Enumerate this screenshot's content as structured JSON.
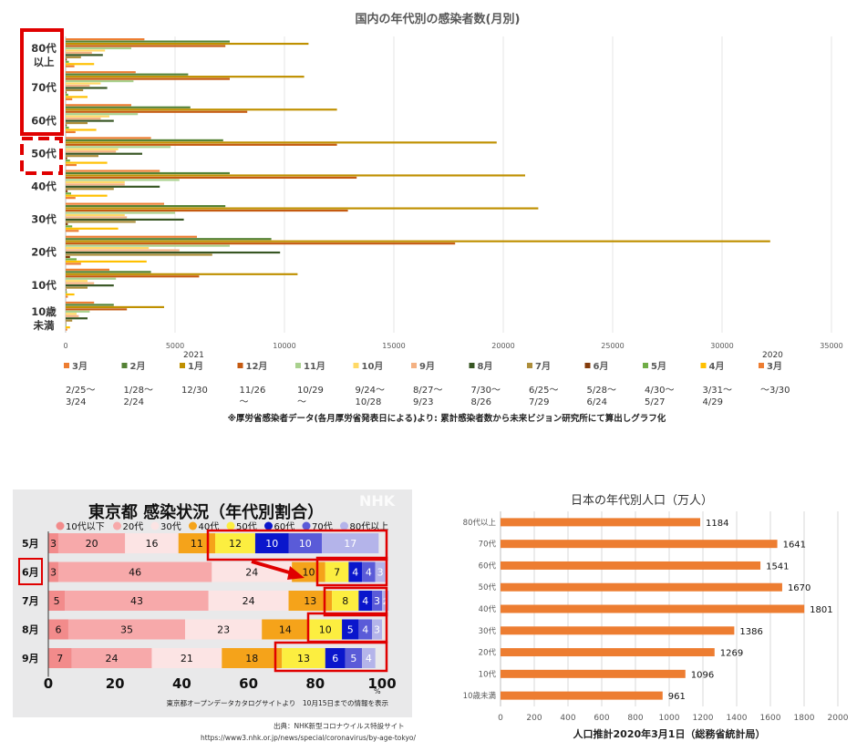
{
  "chart_data": [
    {
      "type": "bar",
      "orientation": "horizontal",
      "title": "国内の年代別の感染者数(月別)",
      "note": "※厚労省感染者データ(各月厚労省発表日による)より: 累計感染者数から未来ビジョン研究所にて算出しグラフ化",
      "categories": [
        "80代\n以上",
        "70代",
        "60代",
        "50代",
        "40代",
        "30代",
        "20代",
        "10代",
        "10歳\n未満"
      ],
      "xlim": [
        0,
        35000
      ],
      "xticks": [
        "0",
        "5000",
        "10000",
        "15000",
        "20000",
        "25000",
        "30000",
        "35000"
      ],
      "year_marks": [
        {
          "label": "2021",
          "at": "1月"
        },
        {
          "label": "2020",
          "at": "3月"
        }
      ],
      "legend": [
        {
          "name": "3月",
          "period": "2/25〜\n3/24",
          "color": "#ed7d31"
        },
        {
          "name": "2月",
          "period": "1/28〜\n2/24",
          "color": "#548235"
        },
        {
          "name": "1月",
          "period": "12/30",
          "color": "#bf9000"
        },
        {
          "name": "12月",
          "period": "11/26\n〜",
          "color": "#c55a11"
        },
        {
          "name": "11月",
          "period": "10/29\n〜",
          "color": "#a9d18e"
        },
        {
          "name": "10月",
          "period": "9/24〜\n10/28",
          "color": "#ffd966"
        },
        {
          "name": "9月",
          "period": "8/27〜\n9/23",
          "color": "#f4b183"
        },
        {
          "name": "8月",
          "period": "7/30〜\n8/26",
          "color": "#375623"
        },
        {
          "name": "7月",
          "period": "6/25〜\n7/29",
          "color": "#ad8e3b"
        },
        {
          "name": "6月",
          "period": "5/28〜\n6/24",
          "color": "#843c0c"
        },
        {
          "name": "5月",
          "period": "4/30〜\n5/27",
          "color": "#70ad47"
        },
        {
          "name": "4月",
          "period": "3/31〜\n4/29",
          "color": "#ffc000"
        },
        {
          "name": "3月",
          "period": "〜3/30",
          "color": "#ed7d31"
        }
      ],
      "series": [
        {
          "name": "3月",
          "values": [
            3600,
            3200,
            3000,
            3900,
            4300,
            4500,
            6000,
            2000,
            1300
          ]
        },
        {
          "name": "2月",
          "values": [
            7500,
            5600,
            5700,
            7200,
            7500,
            7300,
            9400,
            3900,
            2200
          ]
        },
        {
          "name": "1月",
          "values": [
            11100,
            10900,
            12400,
            19700,
            21000,
            21600,
            32200,
            10600,
            4500
          ]
        },
        {
          "name": "12月",
          "values": [
            7300,
            7500,
            8300,
            12400,
            13300,
            12900,
            17800,
            6100,
            2800
          ]
        },
        {
          "name": "11月",
          "values": [
            3000,
            3100,
            3300,
            4800,
            5200,
            5000,
            7500,
            2300,
            1100
          ]
        },
        {
          "name": "10月",
          "values": [
            1800,
            1600,
            2000,
            2400,
            2700,
            2700,
            3800,
            1000,
            500
          ]
        },
        {
          "name": "9月",
          "values": [
            1200,
            1100,
            1600,
            2300,
            2700,
            2800,
            5200,
            1300,
            600
          ]
        },
        {
          "name": "8月",
          "values": [
            1700,
            1900,
            2200,
            3500,
            4300,
            5400,
            9800,
            2200,
            1000
          ]
        },
        {
          "name": "7月",
          "values": [
            700,
            800,
            1000,
            1500,
            2200,
            3200,
            6700,
            1000,
            300
          ]
        },
        {
          "name": "6月",
          "values": [
            50,
            40,
            50,
            70,
            90,
            100,
            200,
            30,
            10
          ]
        },
        {
          "name": "5月",
          "values": [
            150,
            120,
            150,
            200,
            250,
            300,
            500,
            60,
            30
          ]
        },
        {
          "name": "4月",
          "values": [
            1300,
            1000,
            1400,
            1900,
            1900,
            2400,
            3700,
            400,
            200
          ]
        },
        {
          "name": "3月",
          "values": [
            400,
            300,
            450,
            500,
            450,
            600,
            700,
            100,
            70
          ]
        }
      ]
    },
    {
      "type": "bar",
      "orientation": "horizontal-stacked-percent",
      "title": "東京都 感染状況（年代別割合）",
      "watermark": "NHK",
      "categories": [
        "5月",
        "6月",
        "7月",
        "8月",
        "9月"
      ],
      "legend": [
        {
          "name": "10代以下",
          "color": "#f28b8b"
        },
        {
          "name": "20代",
          "color": "#f7a9aa"
        },
        {
          "name": "30代",
          "color": "#fce4e4"
        },
        {
          "name": "40代",
          "color": "#f5a31a"
        },
        {
          "name": "50代",
          "color": "#fcee40"
        },
        {
          "name": "60代",
          "color": "#0a16cc"
        },
        {
          "name": "70代",
          "color": "#5a5bd8"
        },
        {
          "name": "80代以上",
          "color": "#b4b4ea"
        }
      ],
      "series": [
        {
          "name": "10代以下",
          "values": [
            3,
            3,
            5,
            6,
            7
          ]
        },
        {
          "name": "20代",
          "values": [
            20,
            46,
            43,
            35,
            24
          ]
        },
        {
          "name": "30代",
          "values": [
            16,
            24,
            24,
            23,
            21
          ]
        },
        {
          "name": "40代",
          "values": [
            11,
            10,
            13,
            14,
            18
          ]
        },
        {
          "name": "50代",
          "values": [
            12,
            7,
            8,
            10,
            13
          ]
        },
        {
          "name": "60代",
          "values": [
            10,
            4,
            4,
            5,
            6
          ]
        },
        {
          "name": "70代",
          "values": [
            10,
            4,
            3,
            4,
            5
          ]
        },
        {
          "name": "80代以上",
          "values": [
            17,
            3,
            2,
            3,
            4
          ]
        }
      ],
      "xticks": [
        "0",
        "20",
        "40",
        "60",
        "80",
        "100"
      ],
      "xunit": "%",
      "source": "東京都オープンデータカタログサイトより　10月15日までの情報を表示",
      "credit": "出典：NHK新型コロナウイルス特設サイト",
      "url": "https://www3.nhk.or.jp/news/special/coronavirus/by-age-tokyo/"
    },
    {
      "type": "bar",
      "orientation": "horizontal",
      "title": "日本の年代別人口（万人）",
      "categories": [
        "80代以上",
        "70代",
        "60代",
        "50代",
        "40代",
        "30代",
        "20代",
        "10代",
        "10歳未満"
      ],
      "values": [
        1184,
        1641,
        1541,
        1670,
        1801,
        1386,
        1269,
        1096,
        961
      ],
      "color": "#ed7d31",
      "xlim": [
        0,
        2000
      ],
      "xticks": [
        "0",
        "200",
        "400",
        "600",
        "800",
        "1000",
        "1200",
        "1400",
        "1600",
        "1800",
        "2000"
      ],
      "xlabel": "人口推計2020年3月1日（総務省統計局）"
    }
  ]
}
